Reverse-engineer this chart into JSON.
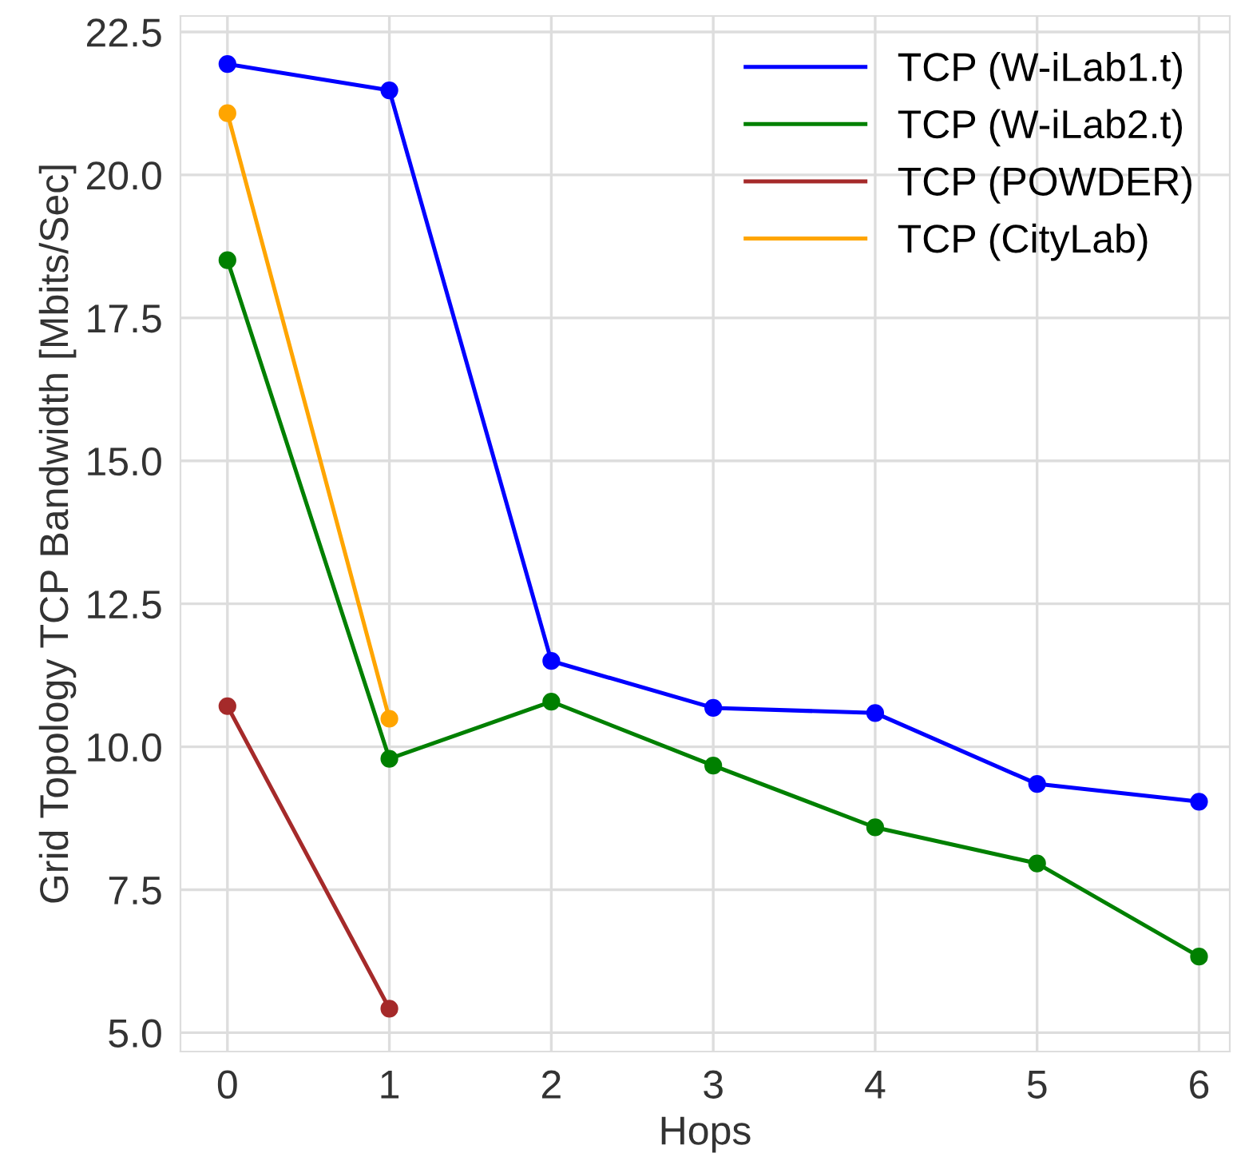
{
  "chart_data": {
    "type": "line",
    "xlabel": "Hops",
    "ylabel": "Grid Topology TCP Bandwidth [Mbits/Sec]",
    "xlim": [
      -0.29,
      6.19
    ],
    "ylim": [
      4.67,
      22.78
    ],
    "xticks": [
      0,
      1,
      2,
      3,
      4,
      5,
      6
    ],
    "yticks": [
      {
        "value": 5,
        "label": "5.0"
      },
      {
        "value": 7.5,
        "label": "7.5"
      },
      {
        "value": 10,
        "label": "10.0"
      },
      {
        "value": 12.5,
        "label": "12.5"
      },
      {
        "value": 15,
        "label": "15.0"
      },
      {
        "value": 17.5,
        "label": "17.5"
      },
      {
        "value": 20,
        "label": "20.0"
      },
      {
        "value": 22.5,
        "label": "22.5"
      }
    ],
    "grid": true,
    "legend": "top right",
    "marker": "circle",
    "line_style": "solid",
    "series": [
      {
        "name": "TCP (W-iLab1.t)",
        "color": "#0000ff",
        "x": [
          0,
          1,
          2,
          3,
          4,
          5,
          6
        ],
        "values": [
          21.94,
          21.48,
          11.5,
          10.68,
          10.59,
          9.35,
          9.04
        ]
      },
      {
        "name": "TCP (W-iLab2.t)",
        "color": "#008000",
        "x": [
          0,
          1,
          2,
          3,
          4,
          5,
          6
        ],
        "values": [
          18.51,
          9.79,
          10.79,
          9.67,
          8.59,
          7.96,
          6.33
        ]
      },
      {
        "name": "TCP (POWDER)",
        "color": "#a52a2a",
        "x": [
          0,
          1
        ],
        "values": [
          10.71,
          5.42
        ]
      },
      {
        "name": "TCP (CityLab)",
        "color": "#ffa500",
        "x": [
          0,
          1
        ],
        "values": [
          21.08,
          10.49
        ]
      }
    ]
  }
}
